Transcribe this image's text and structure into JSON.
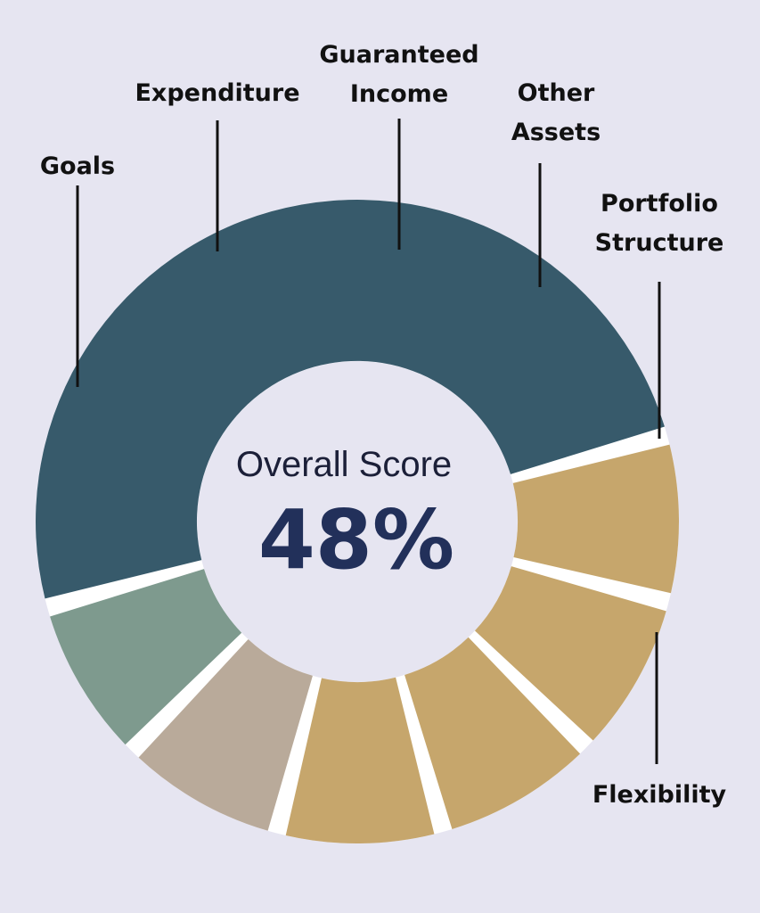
{
  "chart_data": {
    "type": "pie",
    "title": "",
    "center_label": "Overall Score",
    "center_value": "48%",
    "segments": [
      {
        "name": "Score",
        "value": 48,
        "color": "#375a6b"
      },
      {
        "name": "Goals",
        "value": 8,
        "color": "#c6a66c",
        "label_lines": [
          "Goals"
        ]
      },
      {
        "name": "Expenditure",
        "value": 8,
        "color": "#c6a66c",
        "label_lines": [
          "Expenditure"
        ]
      },
      {
        "name": "Guaranteed Income",
        "value": 8,
        "color": "#c6a66c",
        "label_lines": [
          "Guaranteed",
          "Income"
        ]
      },
      {
        "name": "Other Assets",
        "value": 8,
        "color": "#c6a66c",
        "label_lines": [
          "Other",
          "Assets"
        ]
      },
      {
        "name": "Portfolio Structure",
        "value": 8,
        "color": "#b9aa9a",
        "label_lines": [
          "Portfolio",
          "Structure"
        ]
      },
      {
        "name": "Flexibility",
        "value": 8,
        "color": "#7e9a8e",
        "label_lines": [
          "Flexibility"
        ]
      }
    ]
  },
  "colors": {
    "background": "#e6e5f1",
    "gap": "#ffffff",
    "score": "#375a6b",
    "gold": "#c6a66c",
    "taupe": "#b9aa9a",
    "sage": "#7e9a8e",
    "label_text": "#111111",
    "value_text": "#22305a"
  }
}
